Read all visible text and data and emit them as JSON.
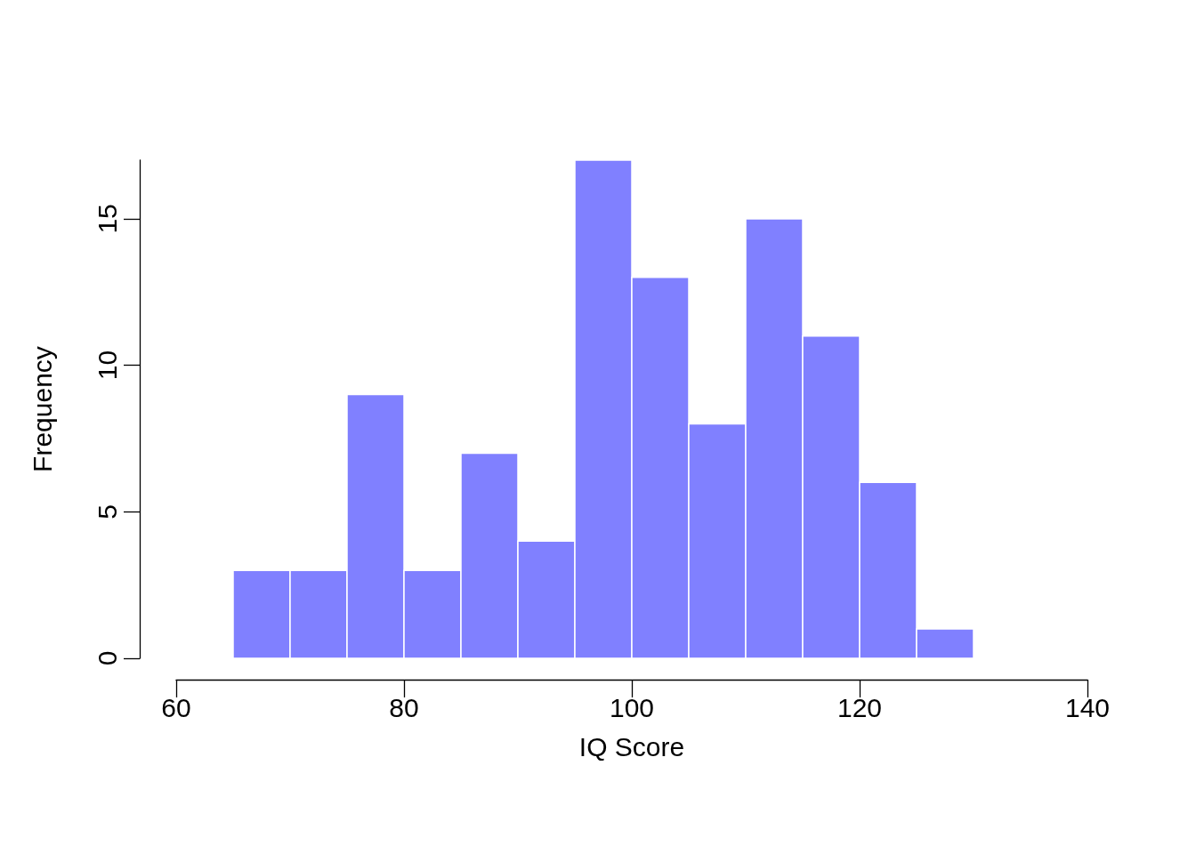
{
  "chart_data": {
    "type": "histogram",
    "xlabel": "IQ Score",
    "ylabel": "Frequency",
    "bins": [
      65,
      70,
      75,
      80,
      85,
      90,
      95,
      100,
      105,
      110,
      115,
      120,
      125,
      130
    ],
    "values": [
      3,
      3,
      9,
      3,
      7,
      4,
      17,
      13,
      8,
      15,
      11,
      6,
      1
    ],
    "color": "#8080ff",
    "xlim": [
      60,
      140
    ],
    "xticks": [
      60,
      80,
      100,
      120,
      140
    ],
    "ylim": [
      0,
      17
    ],
    "yticks": [
      0,
      5,
      10,
      15
    ]
  }
}
